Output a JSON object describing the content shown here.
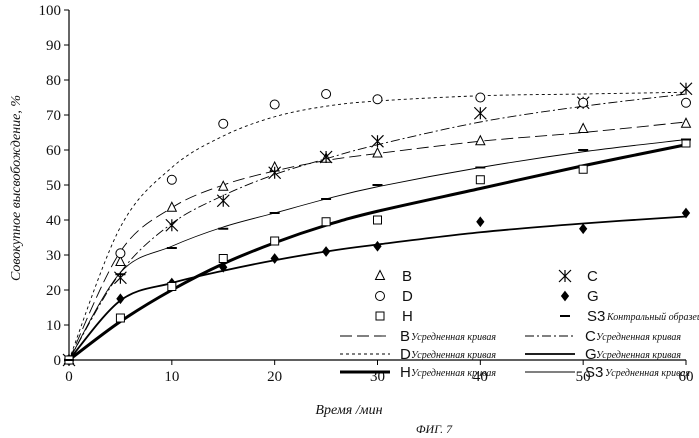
{
  "chart_data": {
    "type": "scatter",
    "xlabel": "Время /мин",
    "ylabel": "Совокупное высвобождение, %",
    "figure_label": "ФИГ. 7",
    "xlim": [
      0,
      60
    ],
    "ylim": [
      0,
      100
    ],
    "x_ticks": [
      "0",
      "10",
      "20",
      "30",
      "40",
      "50",
      "60"
    ],
    "y_ticks": [
      "0",
      "10",
      "20",
      "30",
      "40",
      "50",
      "60",
      "70",
      "80",
      "90",
      "100"
    ],
    "grid": false,
    "legend_position": "bottom-right",
    "series": [
      {
        "name": "B",
        "marker": "triangle",
        "x": [
          0,
          5,
          10,
          15,
          20,
          25,
          30,
          40,
          50,
          60
        ],
        "y": [
          0,
          28,
          43.5,
          49.5,
          55,
          57.5,
          59,
          62.5,
          66,
          67.5
        ]
      },
      {
        "name": "C",
        "marker": "asterisk",
        "x": [
          0,
          5,
          10,
          15,
          20,
          25,
          30,
          40,
          50,
          60
        ],
        "y": [
          0,
          23.5,
          38.5,
          45.5,
          53.5,
          58,
          62.5,
          70.5,
          73.5,
          77.5
        ]
      },
      {
        "name": "D",
        "marker": "circle",
        "x": [
          0,
          5,
          10,
          15,
          20,
          25,
          30,
          40,
          50,
          60
        ],
        "y": [
          0,
          30.5,
          51.5,
          67.5,
          73,
          76,
          74.5,
          75,
          73.5,
          73.5
        ]
      },
      {
        "name": "G",
        "marker": "diamond",
        "x": [
          0,
          5,
          10,
          15,
          20,
          25,
          30,
          40,
          50,
          60
        ],
        "y": [
          0,
          17.5,
          22,
          26.5,
          29,
          31,
          32.5,
          39.5,
          37.5,
          42
        ]
      },
      {
        "name": "H",
        "marker": "square",
        "x": [
          0,
          5,
          10,
          15,
          20,
          25,
          30,
          40,
          50,
          60
        ],
        "y": [
          0,
          12,
          21,
          29,
          34,
          39.5,
          40,
          51.5,
          54.5,
          62
        ]
      },
      {
        "name": "S3",
        "legend_note": "Контральный образец",
        "marker": "dash",
        "x": [
          0,
          5,
          10,
          15,
          20,
          25,
          30,
          40,
          50,
          60
        ],
        "y": [
          0,
          24.5,
          32,
          37.5,
          42,
          46,
          50,
          55,
          60,
          63
        ]
      }
    ],
    "curves": [
      {
        "name": "B",
        "legend_note": "Усредненная кривая",
        "style": "long-dash",
        "x": [
          0,
          5,
          10,
          15,
          20,
          25,
          30,
          40,
          50,
          60
        ],
        "y": [
          0,
          31,
          43.5,
          50,
          54,
          57,
          59,
          62.5,
          65,
          68
        ]
      },
      {
        "name": "C",
        "legend_note": "Усредненная кривая",
        "style": "dash-dot",
        "x": [
          0,
          5,
          10,
          15,
          20,
          25,
          30,
          40,
          50,
          60
        ],
        "y": [
          0,
          25,
          39,
          47,
          53,
          57.5,
          61.5,
          68,
          72.5,
          76
        ]
      },
      {
        "name": "D",
        "legend_note": "Усредненная кривая",
        "style": "short-dash",
        "x": [
          0,
          5,
          10,
          15,
          20,
          25,
          30,
          40,
          50,
          60
        ],
        "y": [
          0,
          38,
          55,
          64,
          69.5,
          72.5,
          74,
          75.5,
          76,
          76.5
        ]
      },
      {
        "name": "G",
        "legend_note": "Усредненная кривая",
        "style": "solid-medium",
        "x": [
          0,
          5,
          10,
          15,
          20,
          25,
          30,
          40,
          50,
          60
        ],
        "y": [
          0,
          17,
          22,
          25.5,
          28.5,
          31,
          33,
          36.5,
          39,
          41
        ]
      },
      {
        "name": "H",
        "legend_note": "Усредненная кривая",
        "style": "solid-thick",
        "x": [
          0,
          5,
          10,
          15,
          20,
          25,
          30,
          40,
          50,
          60
        ],
        "y": [
          0,
          11,
          20,
          27.5,
          33.5,
          38.5,
          42.5,
          49,
          55.5,
          61.5
        ]
      },
      {
        "name": "S3",
        "legend_note": "Усредненная кривая",
        "style": "solid-thin",
        "x": [
          0,
          5,
          10,
          15,
          20,
          25,
          30,
          40,
          50,
          60
        ],
        "y": [
          0,
          25,
          32.5,
          38,
          42,
          46,
          49.5,
          55,
          59.5,
          63
        ]
      }
    ],
    "legend": [
      {
        "letter": "B",
        "marker": "triangle",
        "note": ""
      },
      {
        "letter": "C",
        "marker": "asterisk",
        "note": ""
      },
      {
        "letter": "D",
        "marker": "circle",
        "note": ""
      },
      {
        "letter": "G",
        "marker": "diamond",
        "note": ""
      },
      {
        "letter": "H",
        "marker": "square",
        "note": ""
      },
      {
        "letter": "S3",
        "marker": "dash",
        "note": "Контральный образец"
      },
      {
        "letter": "B",
        "line": "long-dash",
        "note": "Усредненная кривая"
      },
      {
        "letter": "C",
        "line": "dash-dot",
        "note": "Усредненная кривая"
      },
      {
        "letter": "D",
        "line": "short-dash",
        "note": "Усредненная кривая"
      },
      {
        "letter": "G",
        "line": "solid-medium",
        "note": "Усредненная кривая"
      },
      {
        "letter": "H",
        "line": "solid-thick",
        "note": "Усредненная кривая"
      },
      {
        "letter": "S3",
        "line": "solid-thin",
        "note": "Усредненная кривая"
      }
    ]
  }
}
